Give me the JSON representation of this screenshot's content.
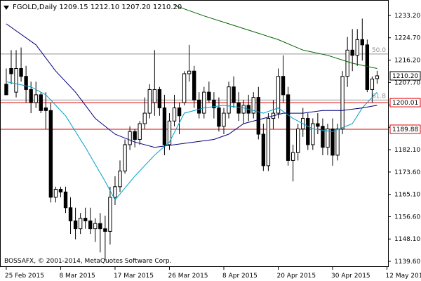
{
  "header": {
    "title": "FGOLD,Daily",
    "ohlc": "1209.15 1212.10 1207.20 1210.20"
  },
  "footer": {
    "copyright": "BOSSAFX, © 2001-2014, MetaQuotes Software Corp."
  },
  "colors": {
    "background": "#ffffff",
    "candle": "#000000",
    "ma_fast": "#00a0c8",
    "ma_mid": "#000080",
    "ma_slow": "#006400",
    "level_line": "#e00000",
    "fib_line": "#909090",
    "price_tag_bg": "#ffffff"
  },
  "chart_data": {
    "type": "candlestick",
    "title": "FGOLD,Daily",
    "y_range": [
      1138,
      1238
    ],
    "y_ticks": [
      1233.2,
      1224.7,
      1216.2,
      1207.7,
      1199.1,
      1190.6,
      1182.1,
      1173.6,
      1165.1,
      1156.6,
      1148.1,
      1139.6
    ],
    "x_labels": [
      "25 Feb 2015",
      "8 Mar 2015",
      "17 Mar 2015",
      "26 Mar 2015",
      "8 Apr 2015",
      "20 Apr 2015",
      "30 Apr 2015",
      "12 May 2015"
    ],
    "x_label_index": [
      0,
      11,
      22,
      33,
      44,
      55,
      66,
      77
    ],
    "candles": [
      [
        1207,
        1213,
        1203,
        1203
      ],
      [
        1213,
        1220,
        1207,
        1211
      ],
      [
        1204,
        1220,
        1202,
        1213
      ],
      [
        1213,
        1221,
        1208,
        1210
      ],
      [
        1210,
        1214,
        1200,
        1205
      ],
      [
        1205,
        1208,
        1196,
        1200
      ],
      [
        1200,
        1208,
        1198,
        1203
      ],
      [
        1203,
        1204,
        1196,
        1197
      ],
      [
        1198,
        1204,
        1190,
        1197
      ],
      [
        1197,
        1200,
        1162,
        1164
      ],
      [
        1164,
        1168,
        1162,
        1167
      ],
      [
        1167,
        1168,
        1164,
        1166
      ],
      [
        1166,
        1168,
        1158,
        1160
      ],
      [
        1160,
        1164,
        1150,
        1155
      ],
      [
        1155,
        1160,
        1148,
        1152
      ],
      [
        1152,
        1158,
        1150,
        1156
      ],
      [
        1156,
        1160,
        1152,
        1155
      ],
      [
        1155,
        1160,
        1150,
        1152
      ],
      [
        1152,
        1156,
        1147,
        1154
      ],
      [
        1154,
        1158,
        1143,
        1152
      ],
      [
        1152,
        1157,
        1140,
        1151
      ],
      [
        1151,
        1168,
        1146,
        1164
      ],
      [
        1164,
        1172,
        1161,
        1168
      ],
      [
        1168,
        1178,
        1166,
        1174
      ],
      [
        1174,
        1186,
        1173,
        1184
      ],
      [
        1184,
        1191,
        1182,
        1189
      ],
      [
        1189,
        1190,
        1183,
        1186
      ],
      [
        1186,
        1193,
        1184,
        1192
      ],
      [
        1192,
        1202,
        1190,
        1196
      ],
      [
        1196,
        1207,
        1194,
        1205
      ],
      [
        1200,
        1220,
        1195,
        1205
      ],
      [
        1205,
        1206,
        1195,
        1198
      ],
      [
        1198,
        1203,
        1180,
        1184
      ],
      [
        1184,
        1196,
        1182,
        1193
      ],
      [
        1193,
        1203,
        1191,
        1198
      ],
      [
        1198,
        1200,
        1188,
        1195
      ],
      [
        1200,
        1212,
        1199,
        1211
      ],
      [
        1211,
        1222,
        1208,
        1212
      ],
      [
        1212,
        1214,
        1198,
        1201
      ],
      [
        1201,
        1204,
        1194,
        1196
      ],
      [
        1196,
        1206,
        1194,
        1204
      ],
      [
        1204,
        1208,
        1200,
        1201
      ],
      [
        1201,
        1204,
        1194,
        1198
      ],
      [
        1198,
        1202,
        1189,
        1191
      ],
      [
        1191,
        1198,
        1188,
        1196
      ],
      [
        1196,
        1208,
        1194,
        1206
      ],
      [
        1206,
        1210,
        1198,
        1200
      ],
      [
        1200,
        1204,
        1193,
        1196
      ],
      [
        1196,
        1201,
        1192,
        1199
      ],
      [
        1199,
        1203,
        1193,
        1196
      ],
      [
        1196,
        1204,
        1194,
        1202
      ],
      [
        1202,
        1206,
        1186,
        1188
      ],
      [
        1188,
        1192,
        1174,
        1176
      ],
      [
        1176,
        1196,
        1174,
        1194
      ],
      [
        1194,
        1201,
        1190,
        1196
      ],
      [
        1196,
        1213,
        1194,
        1210
      ],
      [
        1210,
        1218,
        1200,
        1203
      ],
      [
        1203,
        1206,
        1176,
        1178
      ],
      [
        1178,
        1184,
        1170,
        1181
      ],
      [
        1181,
        1192,
        1178,
        1190
      ],
      [
        1190,
        1198,
        1187,
        1194
      ],
      [
        1194,
        1196,
        1182,
        1184
      ],
      [
        1184,
        1194,
        1182,
        1192
      ],
      [
        1192,
        1196,
        1188,
        1191
      ],
      [
        1191,
        1194,
        1180,
        1183
      ],
      [
        1183,
        1192,
        1180,
        1190
      ],
      [
        1190,
        1194,
        1176,
        1180
      ],
      [
        1180,
        1192,
        1178,
        1190
      ],
      [
        1190,
        1212,
        1188,
        1210
      ],
      [
        1210,
        1225,
        1206,
        1220
      ],
      [
        1220,
        1228,
        1212,
        1218
      ],
      [
        1218,
        1228,
        1214,
        1224
      ],
      [
        1224,
        1232,
        1216,
        1222
      ],
      [
        1222,
        1224,
        1204,
        1205
      ],
      [
        1205,
        1210,
        1200,
        1209
      ],
      [
        1209.15,
        1212.1,
        1207.2,
        1210.2
      ]
    ],
    "ma_fast": [
      [
        0,
        1208
      ],
      [
        5,
        1206
      ],
      [
        8,
        1203
      ],
      [
        12,
        1195
      ],
      [
        16,
        1183
      ],
      [
        20,
        1170
      ],
      [
        22,
        1163
      ],
      [
        26,
        1172
      ],
      [
        30,
        1180
      ],
      [
        33,
        1185
      ],
      [
        36,
        1196
      ],
      [
        40,
        1198
      ],
      [
        44,
        1199
      ],
      [
        48,
        1198
      ],
      [
        52,
        1196
      ],
      [
        55,
        1198
      ],
      [
        58,
        1194
      ],
      [
        62,
        1190
      ],
      [
        66,
        1189
      ],
      [
        70,
        1192
      ],
      [
        72,
        1198
      ],
      [
        75,
        1204
      ]
    ],
    "ma_mid": [
      [
        0,
        1230
      ],
      [
        6,
        1222
      ],
      [
        10,
        1212
      ],
      [
        14,
        1204
      ],
      [
        18,
        1194
      ],
      [
        22,
        1188
      ],
      [
        26,
        1185
      ],
      [
        30,
        1183
      ],
      [
        34,
        1184
      ],
      [
        38,
        1185
      ],
      [
        42,
        1186
      ],
      [
        45,
        1188
      ],
      [
        48,
        1192
      ],
      [
        52,
        1194
      ],
      [
        56,
        1196
      ],
      [
        60,
        1196
      ],
      [
        64,
        1197
      ],
      [
        68,
        1197
      ],
      [
        72,
        1198
      ],
      [
        75,
        1199
      ]
    ],
    "ma_slow": [
      [
        34,
        1237
      ],
      [
        40,
        1233
      ],
      [
        45,
        1230
      ],
      [
        50,
        1227
      ],
      [
        55,
        1224
      ],
      [
        60,
        1220
      ],
      [
        65,
        1218
      ],
      [
        70,
        1215
      ],
      [
        75,
        1213
      ]
    ],
    "horizontal_lines": [
      {
        "value": 1218.5,
        "label": "50.0",
        "kind": "fib"
      },
      {
        "value": 1201.0,
        "label": "61.8",
        "kind": "fib"
      },
      {
        "value": 1200.01,
        "label": "1200.01",
        "kind": "level"
      },
      {
        "value": 1189.88,
        "label": "1189.88",
        "kind": "level"
      }
    ],
    "price_tags": [
      {
        "value": 1210.2,
        "label": "1210.20",
        "style": "current"
      },
      {
        "value": 1200.01,
        "label": "1200.01",
        "style": "level"
      },
      {
        "value": 1189.88,
        "label": "1189.88",
        "style": "level"
      }
    ]
  }
}
